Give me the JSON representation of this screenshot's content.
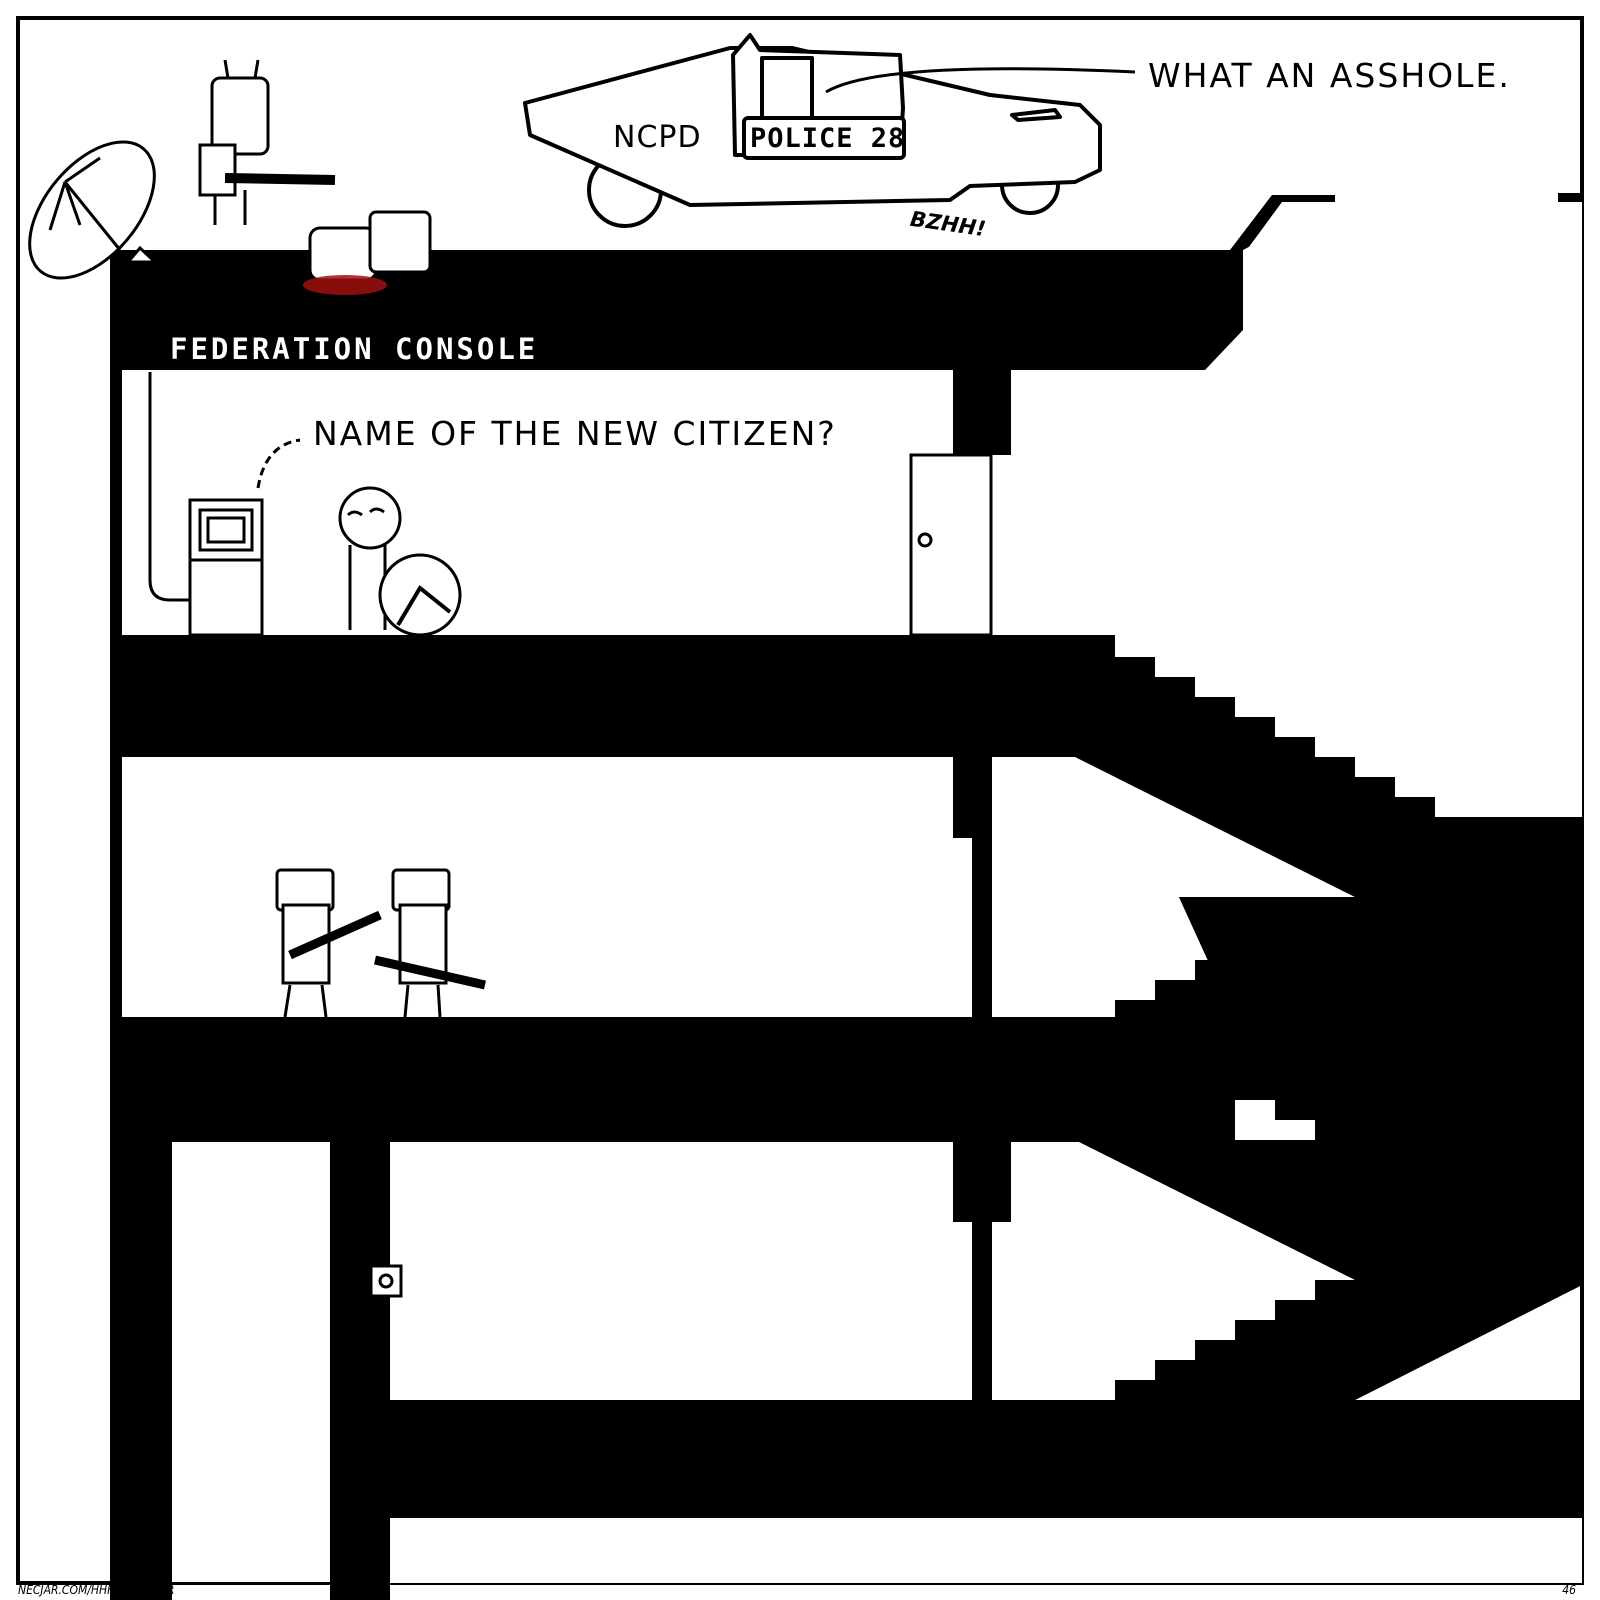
{
  "speech": {
    "police": "WHAT AN ASSHOLE.",
    "console": "NAME OF THE NEW CITIZEN?"
  },
  "sign": "FEDERATION CONSOLE",
  "car": {
    "agency": "NCPD",
    "plate": "POLICE 28"
  },
  "sfx": "BZHH!",
  "footer": {
    "url": "NECJAR.COM/HHH/TRAVELER",
    "page": "46"
  },
  "colors": {
    "ink": "#000000",
    "paper": "#ffffff",
    "blood": "#a01010"
  }
}
